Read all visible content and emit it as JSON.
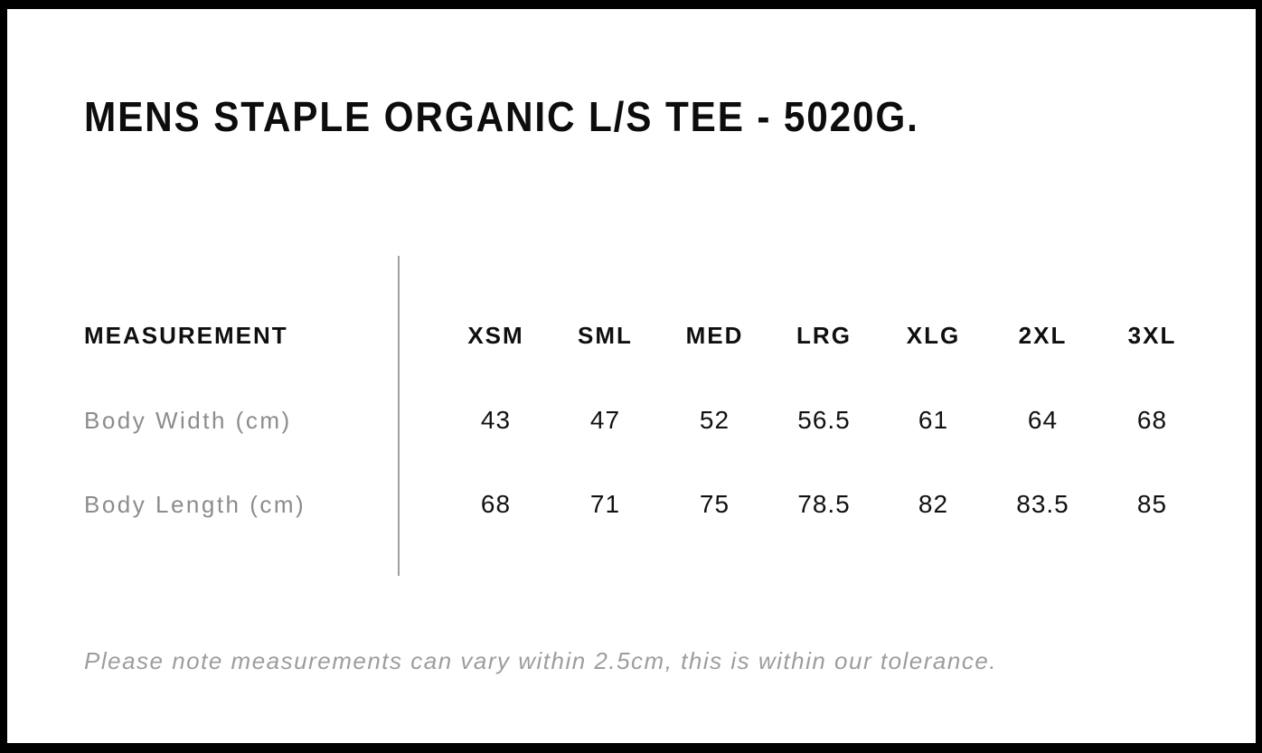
{
  "title": "MENS STAPLE ORGANIC L/S TEE - 5020G.",
  "table": {
    "measurement_header": "MEASUREMENT",
    "size_headers": [
      "XSM",
      "SML",
      "MED",
      "LRG",
      "XLG",
      "2XL",
      "3XL"
    ],
    "rows": [
      {
        "label": "Body Width (cm)",
        "values": [
          "43",
          "47",
          "52",
          "56.5",
          "61",
          "64",
          "68"
        ]
      },
      {
        "label": "Body Length (cm)",
        "values": [
          "68",
          "71",
          "75",
          "78.5",
          "82",
          "83.5",
          "85"
        ]
      }
    ]
  },
  "note": "Please note measurements can vary within 2.5cm, this is within our tolerance.",
  "chart_data": {
    "type": "table",
    "title": "MENS STAPLE ORGANIC L/S TEE - 5020G.",
    "categories": [
      "XSM",
      "SML",
      "MED",
      "LRG",
      "XLG",
      "2XL",
      "3XL"
    ],
    "series": [
      {
        "name": "Body Width (cm)",
        "values": [
          43,
          47,
          52,
          56.5,
          61,
          64,
          68
        ]
      },
      {
        "name": "Body Length (cm)",
        "values": [
          68,
          71,
          75,
          78.5,
          82,
          83.5,
          85
        ]
      }
    ]
  },
  "colors": {
    "frame_black": "#000000",
    "text_black": "#0f0f0f",
    "label_gray": "#8c8c8c",
    "note_gray": "#9d9d9d",
    "divider_gray": "#a0a0a0"
  }
}
